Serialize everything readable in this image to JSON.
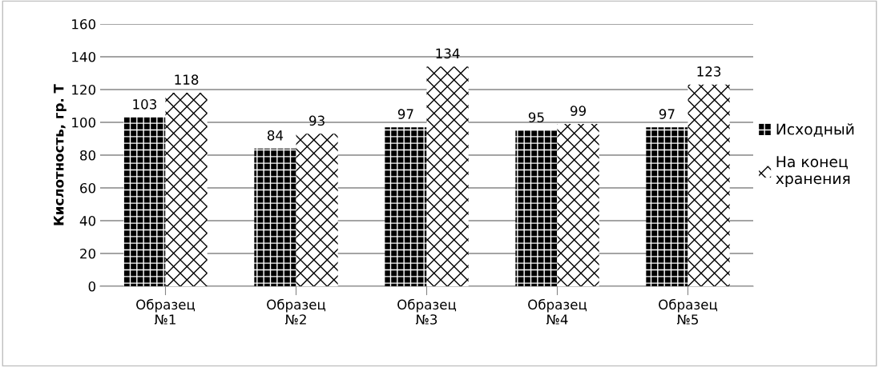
{
  "chart_data": {
    "type": "bar",
    "ylabel": "Кислотность, гр. Т",
    "categories": [
      "Образец\n№1",
      "Образец\n№2",
      "Образец\n№3",
      "Образец\n№4",
      "Образец\n№5"
    ],
    "series": [
      {
        "name": "Исходный",
        "color": "#000000",
        "values": [
          103,
          84,
          97,
          95,
          97
        ]
      },
      {
        "name": "На конец\nхранения",
        "color": "#ffffff",
        "values": [
          118,
          93,
          134,
          99,
          123
        ]
      }
    ],
    "ylim": [
      0,
      160
    ],
    "yticks": [
      0,
      20,
      40,
      60,
      80,
      100,
      120,
      140,
      160
    ],
    "grid": "y",
    "legend": "right",
    "data_labels": true
  }
}
